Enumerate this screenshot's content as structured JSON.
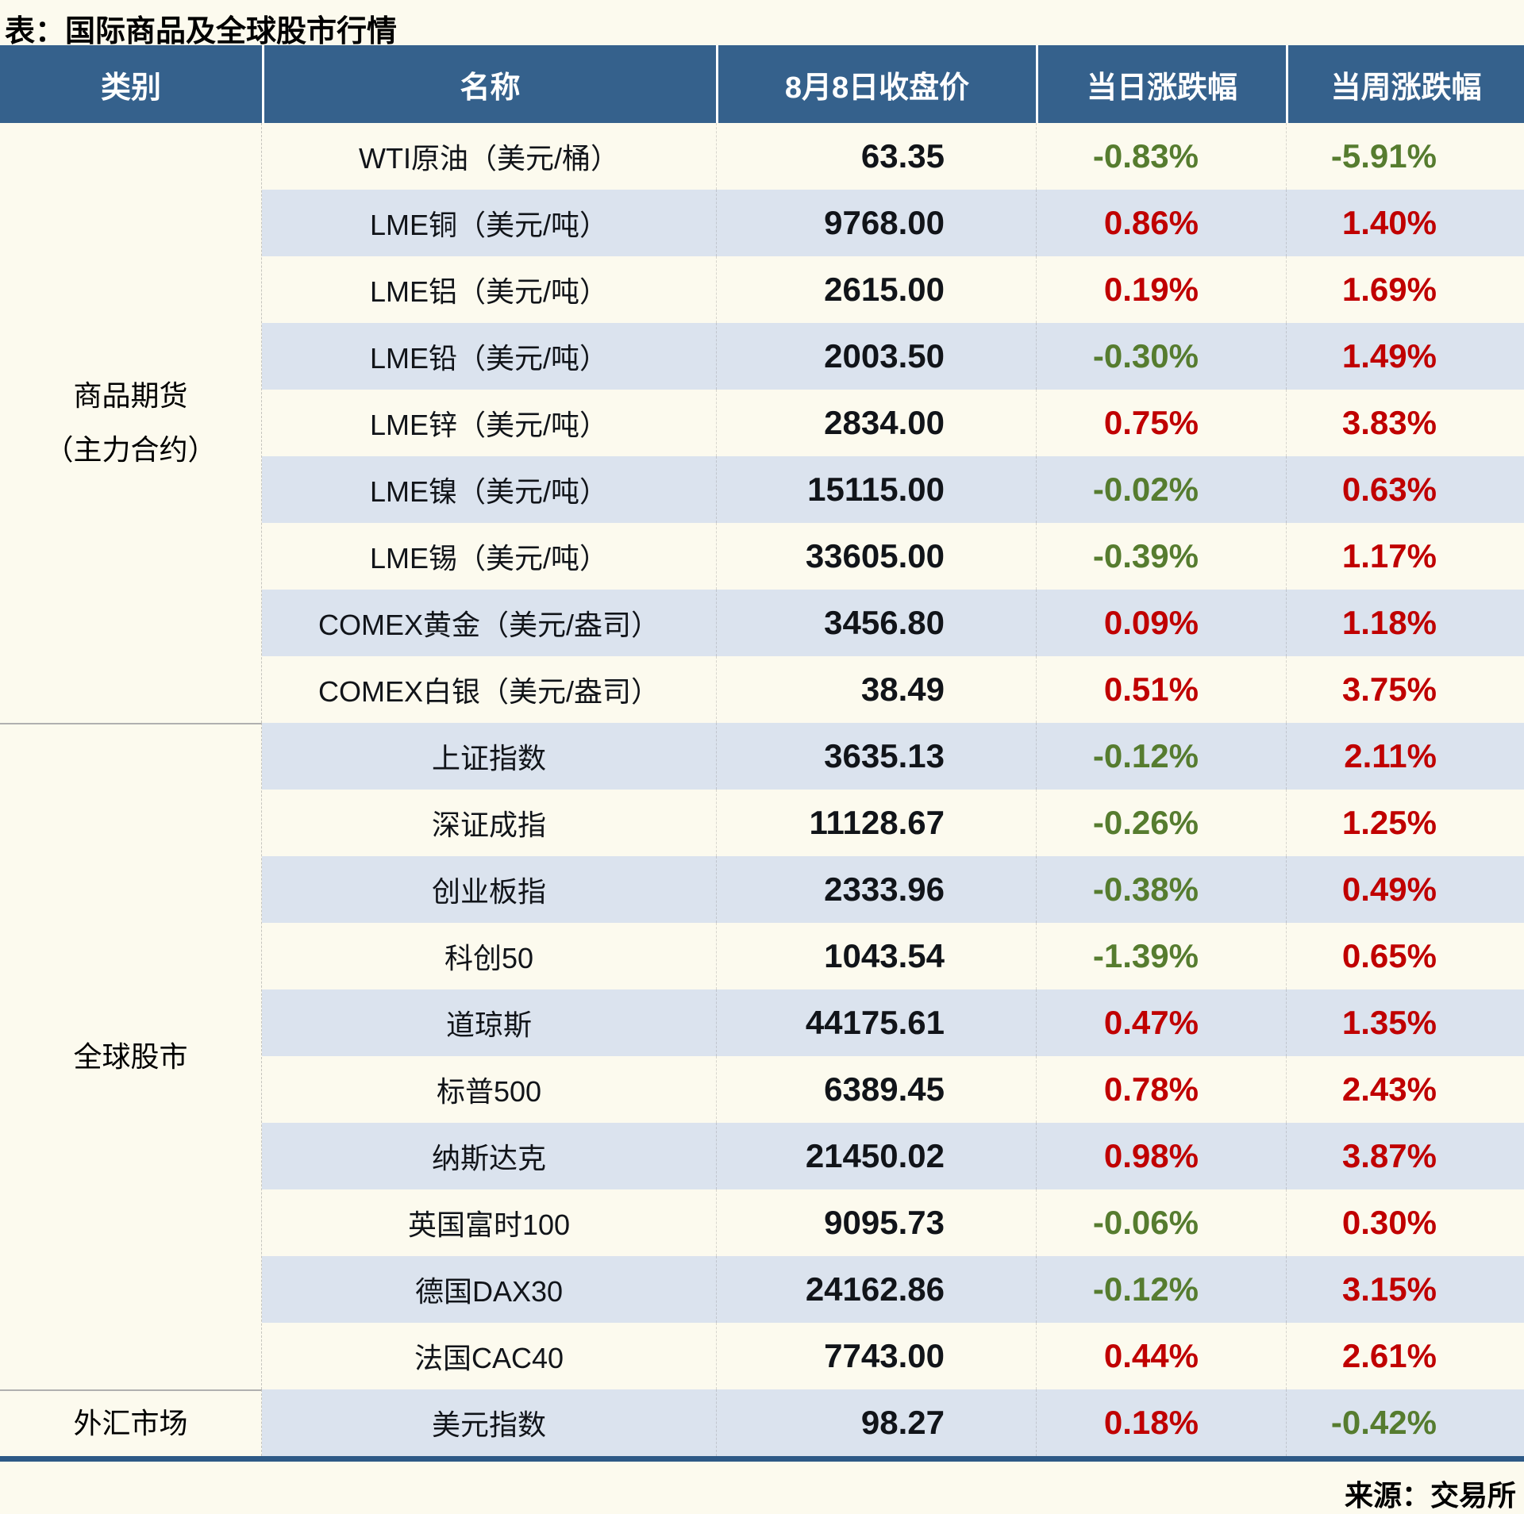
{
  "title": "表：国际商品及全球股市行情",
  "source": "来源：交易所",
  "colors": {
    "header_bg": "#35618c",
    "header_text": "#ffffff",
    "stripe_blue": "#dbe3ee",
    "page_bg": "#fcfaee",
    "up_red": "#c00000",
    "down_green": "#567c2f",
    "text_dark": "#111419",
    "bottom_border": "#2d5986",
    "section_line": "#b0b0b0"
  },
  "table": {
    "headers": [
      "类别",
      "名称",
      "8月8日收盘价",
      "当日涨跌幅",
      "当周涨跌幅"
    ],
    "sections": [
      {
        "category_lines": [
          "商品期货",
          "（主力合约）"
        ],
        "rows": [
          {
            "name": "WTI原油（美元/桶）",
            "close": "63.35",
            "day_change": "-0.83%",
            "week_change": "-5.91%"
          },
          {
            "name": "LME铜（美元/吨）",
            "close": "9768.00",
            "day_change": "0.86%",
            "week_change": "1.40%"
          },
          {
            "name": "LME铝（美元/吨）",
            "close": "2615.00",
            "day_change": "0.19%",
            "week_change": "1.69%"
          },
          {
            "name": "LME铅（美元/吨）",
            "close": "2003.50",
            "day_change": "-0.30%",
            "week_change": "1.49%"
          },
          {
            "name": "LME锌（美元/吨）",
            "close": "2834.00",
            "day_change": "0.75%",
            "week_change": "3.83%"
          },
          {
            "name": "LME镍（美元/吨）",
            "close": "15115.00",
            "day_change": "-0.02%",
            "week_change": "0.63%"
          },
          {
            "name": "LME锡（美元/吨）",
            "close": "33605.00",
            "day_change": "-0.39%",
            "week_change": "1.17%"
          },
          {
            "name": "COMEX黄金（美元/盎司）",
            "close": "3456.80",
            "day_change": "0.09%",
            "week_change": "1.18%"
          },
          {
            "name": "COMEX白银（美元/盎司）",
            "close": "38.49",
            "day_change": "0.51%",
            "week_change": "3.75%"
          }
        ]
      },
      {
        "category_lines": [
          "全球股市"
        ],
        "rows": [
          {
            "name": "上证指数",
            "close": "3635.13",
            "day_change": "-0.12%",
            "week_change": "2.11%"
          },
          {
            "name": "深证成指",
            "close": "11128.67",
            "day_change": "-0.26%",
            "week_change": "1.25%"
          },
          {
            "name": "创业板指",
            "close": "2333.96",
            "day_change": "-0.38%",
            "week_change": "0.49%"
          },
          {
            "name": "科创50",
            "close": "1043.54",
            "day_change": "-1.39%",
            "week_change": "0.65%"
          },
          {
            "name": "道琼斯",
            "close": "44175.61",
            "day_change": "0.47%",
            "week_change": "1.35%"
          },
          {
            "name": "标普500",
            "close": "6389.45",
            "day_change": "0.78%",
            "week_change": "2.43%"
          },
          {
            "name": "纳斯达克",
            "close": "21450.02",
            "day_change": "0.98%",
            "week_change": "3.87%"
          },
          {
            "name": "英国富时100",
            "close": "9095.73",
            "day_change": "-0.06%",
            "week_change": "0.30%"
          },
          {
            "name": "德国DAX30",
            "close": "24162.86",
            "day_change": "-0.12%",
            "week_change": "3.15%"
          },
          {
            "name": "法国CAC40",
            "close": "7743.00",
            "day_change": "0.44%",
            "week_change": "2.61%"
          }
        ]
      },
      {
        "category_lines": [
          "外汇市场"
        ],
        "rows": [
          {
            "name": "美元指数",
            "close": "98.27",
            "day_change": "0.18%",
            "week_change": "-0.42%"
          }
        ]
      }
    ]
  },
  "chart_data": {
    "type": "table",
    "title": "表：国际商品及全球股市行情",
    "columns": [
      "类别",
      "名称",
      "8月8日收盘价",
      "当日涨跌幅",
      "当周涨跌幅"
    ],
    "rows": [
      [
        "商品期货（主力合约）",
        "WTI原油（美元/桶）",
        "63.35",
        "-0.83%",
        "-5.91%"
      ],
      [
        "商品期货（主力合约）",
        "LME铜（美元/吨）",
        "9768.00",
        "0.86%",
        "1.40%"
      ],
      [
        "商品期货（主力合约）",
        "LME铝（美元/吨）",
        "2615.00",
        "0.19%",
        "1.69%"
      ],
      [
        "商品期货（主力合约）",
        "LME铅（美元/吨）",
        "2003.50",
        "-0.30%",
        "1.49%"
      ],
      [
        "商品期货（主力合约）",
        "LME锌（美元/吨）",
        "2834.00",
        "0.75%",
        "3.83%"
      ],
      [
        "商品期货（主力合约）",
        "LME镍（美元/吨）",
        "15115.00",
        "-0.02%",
        "0.63%"
      ],
      [
        "商品期货（主力合约）",
        "LME锡（美元/吨）",
        "33605.00",
        "-0.39%",
        "1.17%"
      ],
      [
        "商品期货（主力合约）",
        "COMEX黄金（美元/盎司）",
        "3456.80",
        "0.09%",
        "1.18%"
      ],
      [
        "商品期货（主力合约）",
        "COMEX白银（美元/盎司）",
        "38.49",
        "0.51%",
        "3.75%"
      ],
      [
        "全球股市",
        "上证指数",
        "3635.13",
        "-0.12%",
        "2.11%"
      ],
      [
        "全球股市",
        "深证成指",
        "11128.67",
        "-0.26%",
        "1.25%"
      ],
      [
        "全球股市",
        "创业板指",
        "2333.96",
        "-0.38%",
        "0.49%"
      ],
      [
        "全球股市",
        "科创50",
        "1043.54",
        "-1.39%",
        "0.65%"
      ],
      [
        "全球股市",
        "道琼斯",
        "44175.61",
        "0.47%",
        "1.35%"
      ],
      [
        "全球股市",
        "标普500",
        "6389.45",
        "0.78%",
        "2.43%"
      ],
      [
        "全球股市",
        "纳斯达克",
        "21450.02",
        "0.98%",
        "3.87%"
      ],
      [
        "全球股市",
        "英国富时100",
        "9095.73",
        "-0.06%",
        "0.30%"
      ],
      [
        "全球股市",
        "德国DAX30",
        "24162.86",
        "-0.12%",
        "3.15%"
      ],
      [
        "全球股市",
        "法国CAC40",
        "7743.00",
        "0.44%",
        "2.61%"
      ],
      [
        "外汇市场",
        "美元指数",
        "98.27",
        "0.18%",
        "-0.42%"
      ]
    ],
    "source": "来源：交易所",
    "color_coding": {
      "positive_values": "#c00000",
      "negative_values": "#567c2f"
    },
    "legend_position": "none",
    "grid": "row-striping"
  }
}
